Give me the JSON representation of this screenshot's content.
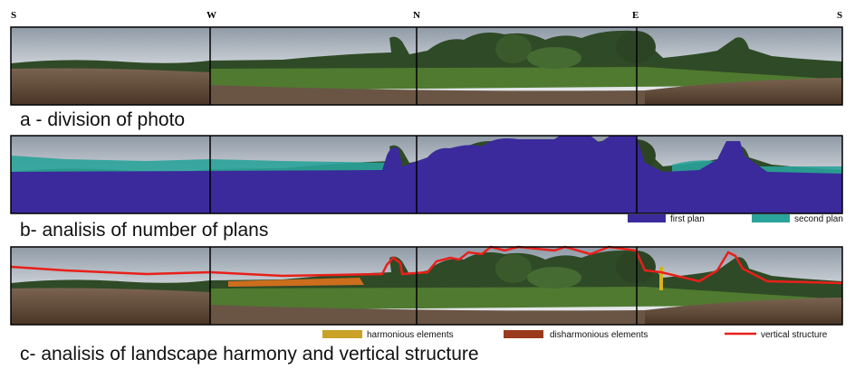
{
  "compass": [
    "S",
    "W",
    "N",
    "E",
    "S"
  ],
  "panels": [
    {
      "caption": "a - division of photo"
    },
    {
      "caption": "b- analisis of number of plans",
      "legend": [
        "first plan",
        "second plan"
      ]
    },
    {
      "caption": "c- analisis of landscape harmony and vertical structure",
      "legend": [
        "harmonious elements",
        "disharmonious elements",
        "vertical structure"
      ]
    }
  ]
}
